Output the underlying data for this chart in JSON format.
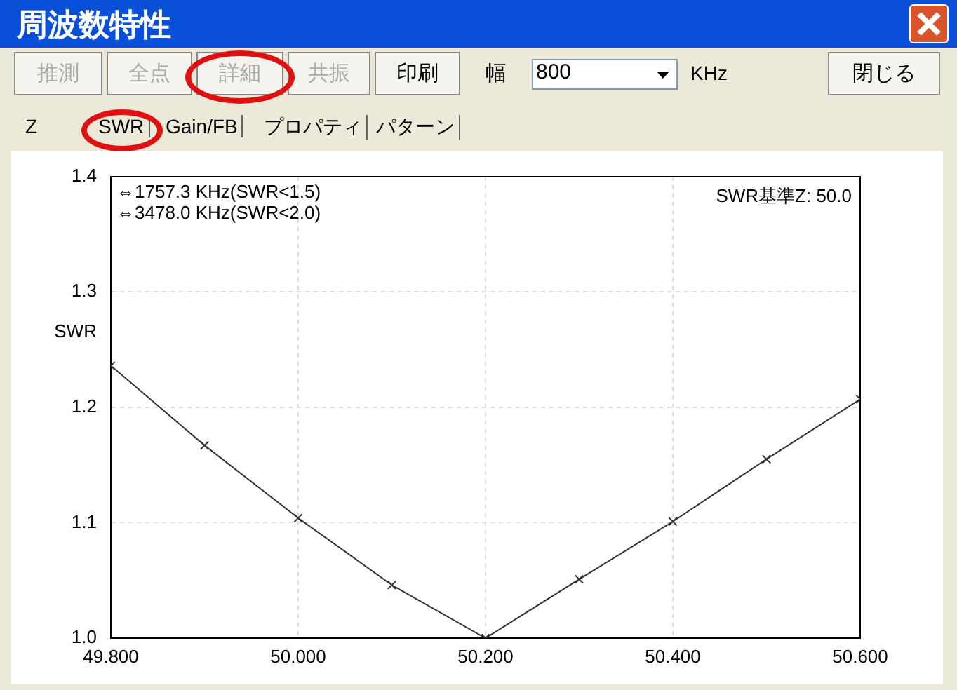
{
  "chart_data": {
    "type": "line",
    "title": "周波数特性",
    "ylabel": "SWR",
    "x": [
      49.8,
      49.9,
      50.0,
      50.1,
      50.2,
      50.3,
      50.4,
      50.5,
      50.6
    ],
    "series": [
      {
        "color": "#333333",
        "values": [
          1.236,
          1.167,
          1.104,
          1.046,
          1.0,
          1.051,
          1.101,
          1.155,
          1.207
        ]
      }
    ],
    "xlim": [
      49.8,
      50.6
    ],
    "xticks": [
      {
        "value": 49.8,
        "label": "49.800"
      },
      {
        "value": 50.0,
        "label": "50.000"
      },
      {
        "value": 50.2,
        "label": "50.200"
      },
      {
        "value": 50.4,
        "label": "50.400"
      },
      {
        "value": 50.6,
        "label": "50.600"
      }
    ],
    "ylim": [
      1.0,
      1.4
    ],
    "yticks": [
      {
        "value": 1.0,
        "label": "1.0"
      },
      {
        "value": 1.1,
        "label": "1.1"
      },
      {
        "value": 1.2,
        "label": "1.2"
      },
      {
        "value": 1.3,
        "label": "1.3"
      },
      {
        "value": 1.4,
        "label": "1.4"
      }
    ],
    "grid": true,
    "legend": false,
    "marker": "cross",
    "line_style": "solid",
    "annotations": [
      "推測",
      "全点",
      "詳細",
      "共振",
      "印刷",
      "幅",
      "800",
      "KHz",
      "閉じる",
      "Z",
      "SWR",
      "Gain/FB",
      "プロパティ",
      "パターン",
      "⇔1757.3 KHz(SWR<1.5)",
      "⇔3478.0 KHz(SWR<2.0)",
      "SWR基準Z: 50.0"
    ]
  }
}
